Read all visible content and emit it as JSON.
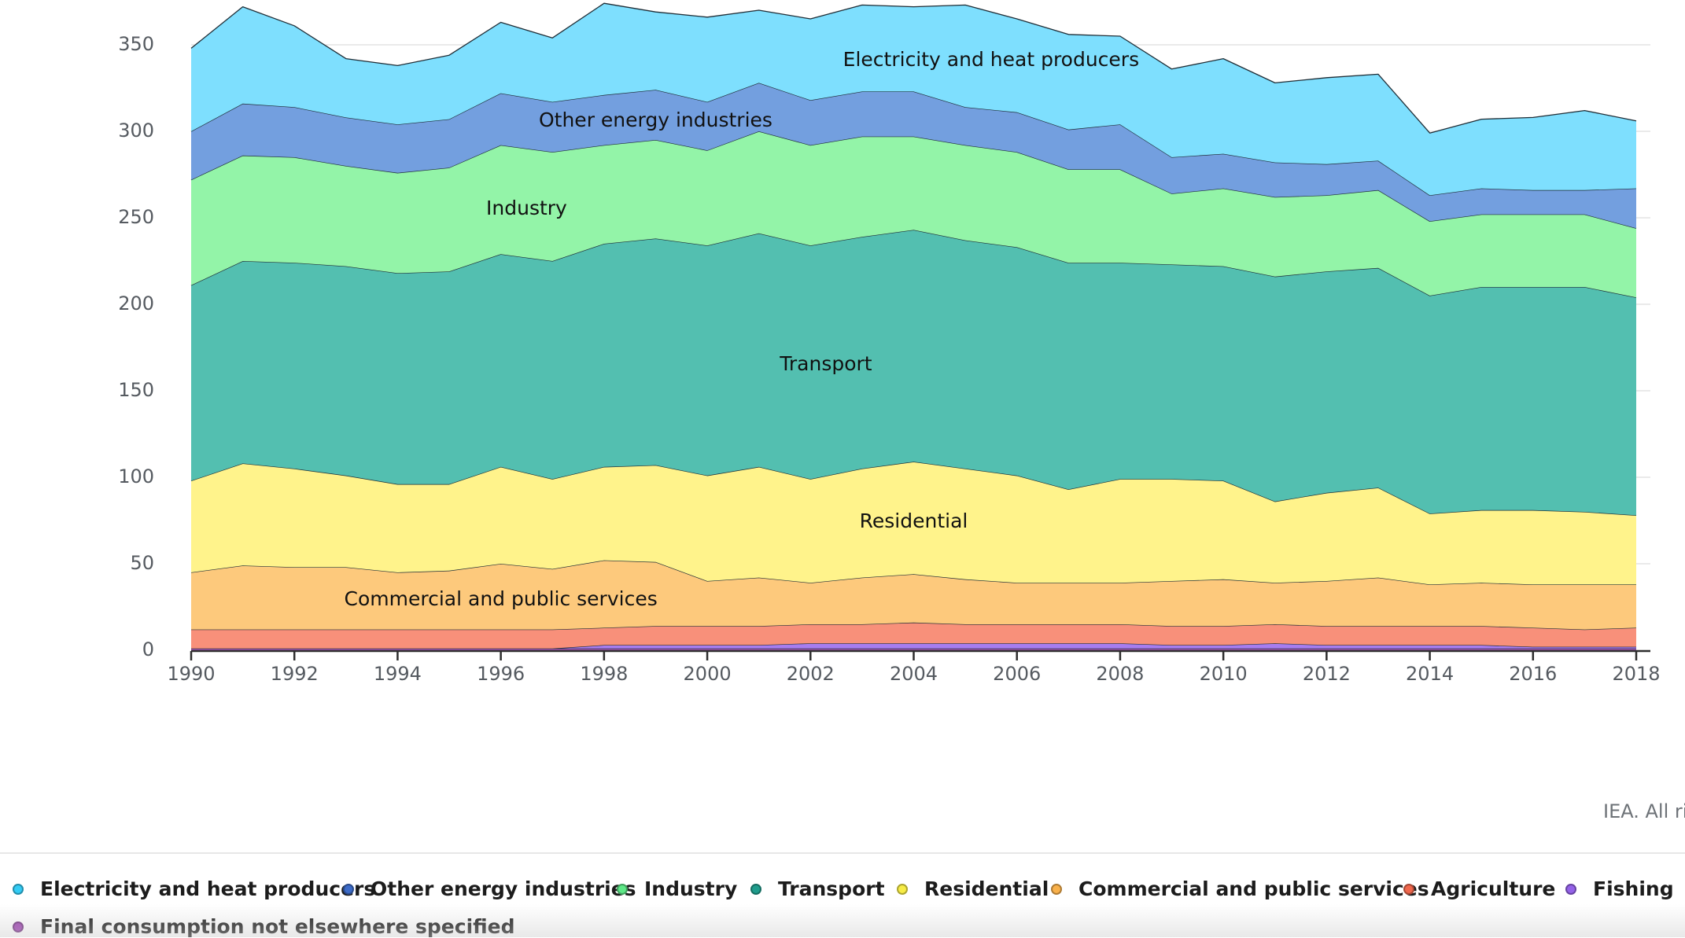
{
  "chart_data": {
    "type": "area",
    "stacked": true,
    "x": [
      1990,
      1991,
      1992,
      1993,
      1994,
      1995,
      1996,
      1997,
      1998,
      1999,
      2000,
      2001,
      2002,
      2003,
      2004,
      2005,
      2006,
      2007,
      2008,
      2009,
      2010,
      2011,
      2012,
      2013,
      2014,
      2015,
      2016,
      2017,
      2018
    ],
    "xticks": [
      "1990",
      "1992",
      "1994",
      "1996",
      "1998",
      "2000",
      "2002",
      "2004",
      "2006",
      "2008",
      "2010",
      "2012",
      "2014",
      "2016",
      "2018"
    ],
    "yticks": [
      "0",
      "50",
      "100",
      "150",
      "200",
      "250",
      "300",
      "350"
    ],
    "ylim": [
      0,
      370
    ],
    "series": [
      {
        "name": "Final consumption not elsewhere specified",
        "color": "#b65bc6",
        "values": [
          1,
          1,
          1,
          1,
          1,
          1,
          1,
          1,
          1,
          1,
          1,
          1,
          1,
          1,
          1,
          1,
          1,
          1,
          1,
          1,
          1,
          1,
          1,
          1,
          1,
          1,
          1,
          1,
          1
        ]
      },
      {
        "name": "Fishing",
        "color": "#a77df0",
        "values": [
          0,
          0,
          0,
          0,
          0,
          0,
          0,
          0,
          2,
          2,
          2,
          2,
          3,
          3,
          3,
          3,
          3,
          3,
          3,
          2,
          2,
          3,
          2,
          2,
          2,
          2,
          1,
          1,
          1
        ]
      },
      {
        "name": "Agriculture",
        "color": "#f8907a",
        "values": [
          11,
          11,
          11,
          11,
          11,
          11,
          11,
          11,
          10,
          11,
          11,
          11,
          11,
          11,
          12,
          11,
          11,
          11,
          11,
          11,
          11,
          11,
          11,
          11,
          11,
          11,
          11,
          10,
          11
        ]
      },
      {
        "name": "Commercial and public services",
        "color": "#fdc97c",
        "values": [
          33,
          37,
          36,
          36,
          33,
          34,
          38,
          35,
          39,
          37,
          26,
          28,
          24,
          27,
          28,
          26,
          24,
          24,
          24,
          26,
          27,
          24,
          26,
          28,
          24,
          25,
          25,
          26,
          25
        ]
      },
      {
        "name": "Residential",
        "color": "#fff38b",
        "values": [
          53,
          59,
          57,
          53,
          51,
          50,
          56,
          52,
          54,
          56,
          61,
          64,
          60,
          63,
          65,
          64,
          62,
          54,
          60,
          59,
          57,
          47,
          51,
          52,
          41,
          42,
          43,
          42,
          40
        ]
      },
      {
        "name": "Transport",
        "color": "#53bfb0",
        "values": [
          113,
          117,
          119,
          121,
          122,
          123,
          123,
          126,
          129,
          131,
          133,
          135,
          135,
          134,
          134,
          132,
          132,
          131,
          125,
          124,
          124,
          130,
          128,
          127,
          126,
          129,
          129,
          130,
          126
        ]
      },
      {
        "name": "Industry",
        "color": "#93f4a8",
        "values": [
          61,
          61,
          61,
          58,
          58,
          60,
          63,
          63,
          57,
          57,
          55,
          59,
          58,
          58,
          54,
          55,
          55,
          54,
          54,
          41,
          45,
          46,
          44,
          45,
          43,
          42,
          42,
          42,
          40
        ]
      },
      {
        "name": "Other energy industries",
        "color": "#739fdf",
        "values": [
          28,
          30,
          29,
          28,
          28,
          28,
          30,
          29,
          29,
          29,
          28,
          28,
          26,
          26,
          26,
          22,
          23,
          23,
          26,
          21,
          20,
          20,
          18,
          17,
          15,
          15,
          14,
          14,
          23
        ]
      },
      {
        "name": "Electricity and heat producers",
        "color": "#7edffe",
        "values": [
          48,
          56,
          47,
          34,
          34,
          37,
          41,
          37,
          53,
          45,
          49,
          42,
          47,
          50,
          49,
          59,
          54,
          55,
          51,
          51,
          55,
          46,
          50,
          50,
          36,
          40,
          42,
          46,
          39
        ]
      }
    ],
    "area_labels": [
      {
        "text": "Electricity and heat producers",
        "x": 2005.5,
        "y": 341
      },
      {
        "text": "Other energy industries",
        "x": 1999.0,
        "y": 306
      },
      {
        "text": "Industry",
        "x": 1996.5,
        "y": 255
      },
      {
        "text": "Transport",
        "x": 2002.3,
        "y": 165
      },
      {
        "text": "Residential",
        "x": 2004.0,
        "y": 74
      },
      {
        "text": "Commercial and public services",
        "x": 1996.0,
        "y": 29
      }
    ],
    "legend_position": "bottom",
    "grid": true
  },
  "credit": "IEA. All rig",
  "legend": [
    {
      "label": "Electricity and heat producers",
      "color": "#33ccf5"
    },
    {
      "label": "Other energy industries",
      "color": "#3d6cc9"
    },
    {
      "label": "Industry",
      "color": "#5ee887"
    },
    {
      "label": "Transport",
      "color": "#1f9c8c"
    },
    {
      "label": "Residential",
      "color": "#f7ec46"
    },
    {
      "label": "Commercial and public services",
      "color": "#f9b14b"
    },
    {
      "label": "Agriculture",
      "color": "#f0674d"
    },
    {
      "label": "Fishing",
      "color": "#9462e8"
    },
    {
      "label": "Final consumption not elsewhere specified",
      "color": "#9c3fb0"
    }
  ]
}
